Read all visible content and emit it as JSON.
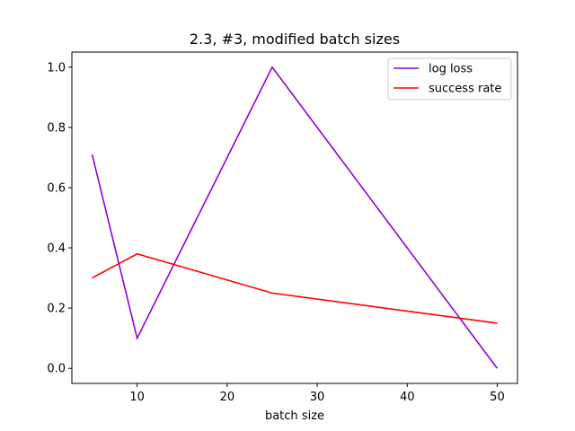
{
  "chart_data": {
    "type": "line",
    "title": "2.3, #3, modified batch sizes",
    "xlabel": "batch size",
    "ylabel": "",
    "x": [
      5,
      10,
      25,
      50
    ],
    "xlim": [
      2.75,
      52.25
    ],
    "ylim": [
      -0.05,
      1.05
    ],
    "xticks": [
      10,
      20,
      30,
      40,
      50
    ],
    "yticks": [
      "0.0",
      "0.2",
      "0.4",
      "0.6",
      "0.8",
      "1.0"
    ],
    "grid": false,
    "legend_position": "top-right",
    "series": [
      {
        "name": "log loss",
        "color": "#9400d3",
        "values": [
          0.71,
          0.1,
          1.0,
          0.0
        ]
      },
      {
        "name": "success rate",
        "color": "#ff0000",
        "values": [
          0.3,
          0.38,
          0.25,
          0.15
        ]
      }
    ]
  }
}
